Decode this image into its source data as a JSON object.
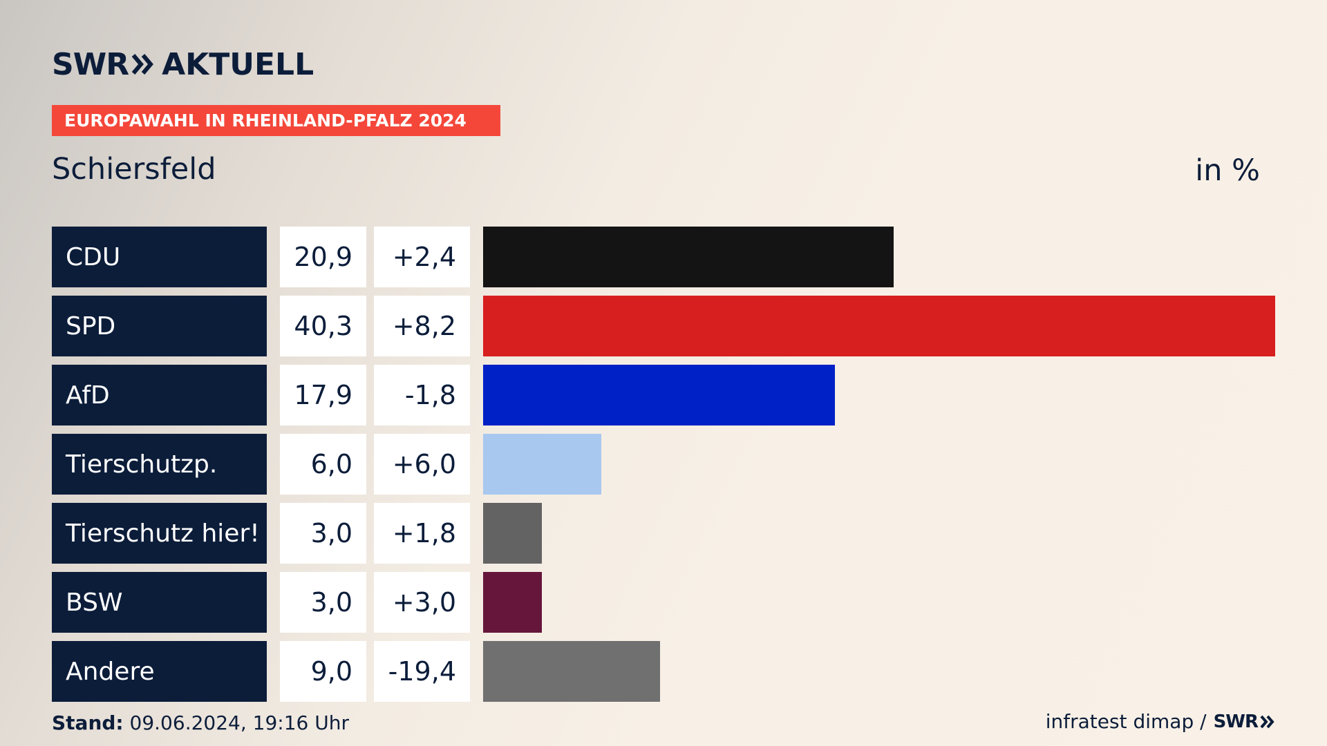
{
  "brand": {
    "logo_swr": "SWR",
    "logo_aktuell": "AKTUELL"
  },
  "header": {
    "ribbon": "EUROPAWAHL IN RHEINLAND-PFALZ 2024",
    "location": "Schiersfeld",
    "unit": "in %"
  },
  "colors": {
    "navy": "#0c1d3a",
    "ribbon": "#f4473a"
  },
  "chart_data": {
    "type": "bar",
    "orientation": "horizontal",
    "title": "Schiersfeld",
    "unit": "in %",
    "categories": [
      "CDU",
      "SPD",
      "AfD",
      "Tierschutzp.",
      "Tierschutz hier!",
      "BSW",
      "Andere"
    ],
    "values": [
      20.9,
      40.3,
      17.9,
      6.0,
      3.0,
      3.0,
      9.0
    ],
    "value_labels": [
      "20,9",
      "40,3",
      "17,9",
      "6,0",
      "3,0",
      "3,0",
      "9,0"
    ],
    "change_labels": [
      "+2,4",
      "+8,2",
      "-1,8",
      "+6,0",
      "+1,8",
      "+3,0",
      "-19,4"
    ],
    "colors": [
      "#141414",
      "#d71f1f",
      "#0021c6",
      "#a9c8ef",
      "#636363",
      "#66163b",
      "#707070"
    ],
    "xlim": [
      0,
      40.3
    ],
    "grid": false
  },
  "footer": {
    "stand_label": "Stand:",
    "stand_value": "09.06.2024, 19:16 Uhr",
    "source": "infratest dimap /",
    "source_logo": "SWR"
  }
}
